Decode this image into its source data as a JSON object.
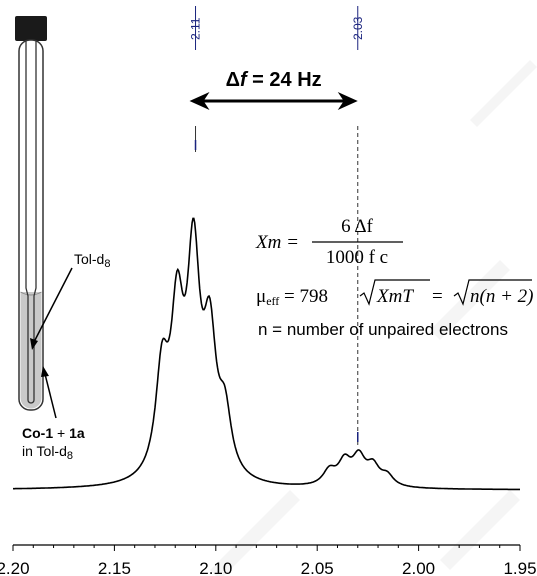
{
  "chart_data": {
    "type": "line",
    "x_axis": {
      "reversed": true,
      "ticks": [
        2.2,
        2.15,
        2.1,
        2.05,
        2.0,
        1.95
      ],
      "tick_labels": [
        "2.20",
        "2.15",
        "2.10",
        "2.05",
        "2.00",
        "1.95"
      ],
      "xlim": [
        2.2,
        1.95
      ]
    },
    "peak_labels": [
      "2.11",
      "2.03"
    ],
    "peak_positions": [
      2.11,
      2.03
    ],
    "annotation": {
      "delta": "Δ",
      "f_italic": "f",
      "rest": " = 24 Hz"
    },
    "spectrum_peaks": [
      {
        "x": 2.1265,
        "height": 0.48
      },
      {
        "x": 2.119,
        "height": 0.72
      },
      {
        "x": 2.111,
        "height": 1.0
      },
      {
        "x": 2.103,
        "height": 0.62
      },
      {
        "x": 2.0955,
        "height": 0.28
      },
      {
        "x": 2.044,
        "height": 0.07
      },
      {
        "x": 2.0365,
        "height": 0.11
      },
      {
        "x": 2.0295,
        "height": 0.13
      },
      {
        "x": 2.0225,
        "height": 0.09
      },
      {
        "x": 2.0155,
        "height": 0.05
      }
    ]
  },
  "equations": {
    "xm_lhs": "Xm = ",
    "xm_num": "6 Δf",
    "xm_den": "1000 f c",
    "mu": "μ",
    "mu_sub": "eff",
    "mu_mid": " = 798",
    "mu_rad1": "XmT",
    "mu_eq": " = ",
    "mu_rad2": "n(n + 2)",
    "n_def": "n = number of unpaired electrons"
  },
  "tube": {
    "solvent_label": "Tol-d",
    "solvent_sub": "8",
    "sample_label_a": "Co-1",
    "sample_label_plus": " + ",
    "sample_label_b": "1a",
    "sample_label_line2": "in Tol-d",
    "sample_label_sub": "8"
  },
  "colors": {
    "peak_label": "#1a237e",
    "tube_liquid": "#c9c9c9",
    "watermark": "#eeeeee"
  }
}
